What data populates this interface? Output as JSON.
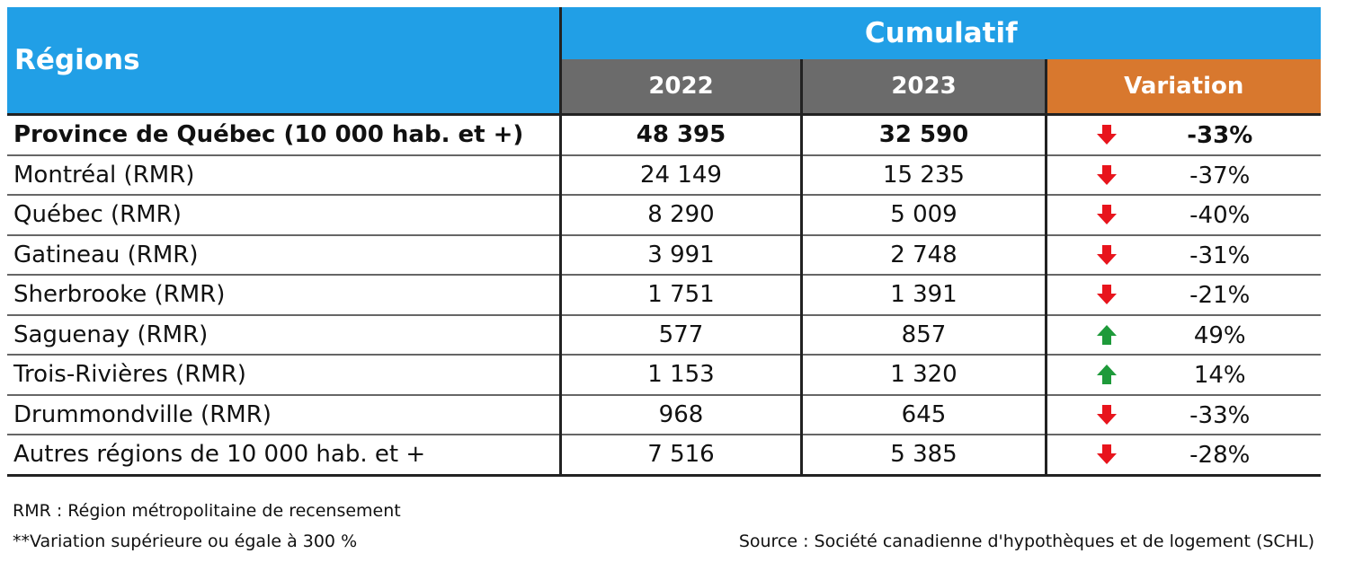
{
  "header": {
    "regions": "Régions",
    "cumulative": "Cumulatif",
    "year1": "2022",
    "year2": "2023",
    "variation": "Variation"
  },
  "colors": {
    "header_blue": "#219fe6",
    "header_gray": "#6b6b6b",
    "variation_orange": "#d8782e",
    "arrow_down": "#e8141c",
    "arrow_up": "#1e9a3a"
  },
  "chart_data": {
    "type": "table",
    "columns": [
      "Régions",
      "2022",
      "2023",
      "Variation"
    ],
    "rows": [
      {
        "region": "Province de Québec (10 000 hab. et +)",
        "y2022": "48 395",
        "y2023": "32 590",
        "direction": "down",
        "variation": "-33%",
        "bold": true
      },
      {
        "region": "Montréal (RMR)",
        "y2022": "24 149",
        "y2023": "15 235",
        "direction": "down",
        "variation": "-37%",
        "bold": false
      },
      {
        "region": "Québec (RMR)",
        "y2022": "8 290",
        "y2023": "5 009",
        "direction": "down",
        "variation": "-40%",
        "bold": false
      },
      {
        "region": "Gatineau (RMR)",
        "y2022": "3 991",
        "y2023": "2 748",
        "direction": "down",
        "variation": "-31%",
        "bold": false
      },
      {
        "region": "Sherbrooke (RMR)",
        "y2022": "1 751",
        "y2023": "1 391",
        "direction": "down",
        "variation": "-21%",
        "bold": false
      },
      {
        "region": "Saguenay (RMR)",
        "y2022": "577",
        "y2023": "857",
        "direction": "up",
        "variation": "49%",
        "bold": false
      },
      {
        "region": "Trois-Rivières (RMR)",
        "y2022": "1 153",
        "y2023": "1 320",
        "direction": "up",
        "variation": "14%",
        "bold": false
      },
      {
        "region": "Drummondville (RMR)",
        "y2022": "968",
        "y2023": "645",
        "direction": "down",
        "variation": "-33%",
        "bold": false
      },
      {
        "region": "Autres régions de 10 000  hab. et +",
        "y2022": "7 516",
        "y2023": "5 385",
        "direction": "down",
        "variation": "-28%",
        "bold": false
      }
    ]
  },
  "footer": {
    "note1": "RMR : Région métropolitaine de recensement",
    "note2": "**Variation supérieure ou égale à 300 %",
    "source": "Source : Société canadienne d'hypothèques et de logement (SCHL)"
  }
}
